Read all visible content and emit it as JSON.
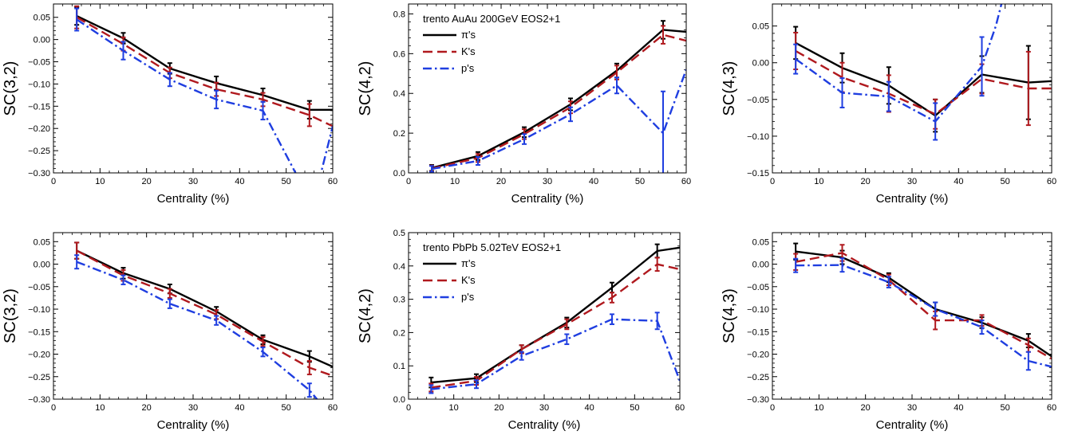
{
  "chart_data": [
    {
      "type": "line",
      "ylabel": "SC(3,2)",
      "xlabel": "Centrality (%)",
      "xlim": [
        0,
        60
      ],
      "ylim": [
        -0.3,
        0.08
      ],
      "xticks": [
        0,
        10,
        20,
        30,
        40,
        50,
        60
      ],
      "yticks": [
        -0.3,
        -0.25,
        -0.2,
        -0.15,
        -0.1,
        -0.05,
        0.0,
        0.05
      ],
      "legend_title": "",
      "legend": false,
      "series": [
        {
          "name": "π's",
          "color": "#000000",
          "dash": "solid",
          "x": [
            5,
            15,
            25,
            35,
            45,
            55,
            60
          ],
          "y": [
            0.053,
            0.003,
            -0.065,
            -0.098,
            -0.125,
            -0.158,
            -0.158
          ],
          "err": [
            0.02,
            0.012,
            0.012,
            0.015,
            0.015,
            0.02,
            0
          ]
        },
        {
          "name": "K's",
          "color": "#b0191e",
          "dash": "dashed",
          "x": [
            5,
            15,
            25,
            35,
            45,
            55,
            60
          ],
          "y": [
            0.05,
            -0.01,
            -0.075,
            -0.112,
            -0.135,
            -0.17,
            -0.195
          ],
          "err": [
            0.025,
            0.015,
            0.012,
            0.015,
            0.015,
            0.025,
            0
          ]
        },
        {
          "name": "p's",
          "color": "#1f3ee0",
          "dash": "dashdot",
          "x": [
            5,
            15,
            25,
            35,
            45,
            50,
            53,
            57,
            60
          ],
          "y": [
            0.045,
            -0.025,
            -0.09,
            -0.135,
            -0.16,
            -0.26,
            -0.32,
            -0.32,
            -0.195
          ],
          "err": [
            0.025,
            0.02,
            0.015,
            0.02,
            0.02,
            0,
            0,
            0,
            0
          ]
        }
      ]
    },
    {
      "type": "line",
      "ylabel": "SC(4,2)",
      "xlabel": "Centrality (%)",
      "xlim": [
        0,
        60
      ],
      "ylim": [
        0,
        0.85
      ],
      "xticks": [
        0,
        10,
        20,
        30,
        40,
        50,
        60
      ],
      "yticks": [
        0.0,
        0.2,
        0.4,
        0.6,
        0.8
      ],
      "legend_title": "trento AuAu 200GeV EOS2+1",
      "legend": true,
      "series": [
        {
          "name": "π's",
          "color": "#000000",
          "dash": "solid",
          "x": [
            5,
            15,
            25,
            35,
            45,
            55,
            60
          ],
          "y": [
            0.025,
            0.085,
            0.205,
            0.345,
            0.515,
            0.72,
            0.71
          ],
          "err": [
            0.015,
            0.02,
            0.025,
            0.03,
            0.035,
            0.045,
            0
          ]
        },
        {
          "name": "K's",
          "color": "#b0191e",
          "dash": "dashed",
          "x": [
            5,
            15,
            25,
            35,
            45,
            55,
            60
          ],
          "y": [
            0.022,
            0.075,
            0.195,
            0.33,
            0.505,
            0.695,
            0.665
          ],
          "err": [
            0.015,
            0.02,
            0.025,
            0.03,
            0.035,
            0.045,
            0
          ]
        },
        {
          "name": "p's",
          "color": "#1f3ee0",
          "dash": "dashdot",
          "x": [
            5,
            15,
            25,
            35,
            45,
            55,
            60
          ],
          "y": [
            0.02,
            0.06,
            0.17,
            0.295,
            0.44,
            0.2,
            0.52
          ],
          "err": [
            0.015,
            0.02,
            0.025,
            0.035,
            0.04,
            0.21,
            0
          ]
        }
      ]
    },
    {
      "type": "line",
      "ylabel": "SC(4,3)",
      "xlabel": "Centrality (%)",
      "xlim": [
        0,
        60
      ],
      "ylim": [
        -0.15,
        0.08
      ],
      "xticks": [
        0,
        10,
        20,
        30,
        40,
        50,
        60
      ],
      "yticks": [
        -0.15,
        -0.1,
        -0.05,
        0.0,
        0.05
      ],
      "legend_title": "",
      "legend": false,
      "series": [
        {
          "name": "π's",
          "color": "#000000",
          "dash": "solid",
          "x": [
            5,
            15,
            25,
            35,
            45,
            55,
            60
          ],
          "y": [
            0.027,
            -0.007,
            -0.031,
            -0.072,
            -0.016,
            -0.027,
            -0.025
          ],
          "err": [
            0.022,
            0.02,
            0.025,
            0.022,
            0.025,
            0.05,
            0
          ]
        },
        {
          "name": "K's",
          "color": "#b0191e",
          "dash": "dashed",
          "x": [
            5,
            15,
            25,
            35,
            45,
            55,
            60
          ],
          "y": [
            0.016,
            -0.02,
            -0.042,
            -0.07,
            -0.022,
            -0.035,
            -0.035
          ],
          "err": [
            0.025,
            0.02,
            0.025,
            0.02,
            0.02,
            0.05,
            0
          ]
        },
        {
          "name": "p's",
          "color": "#1f3ee0",
          "dash": "dashdot",
          "x": [
            5,
            15,
            25,
            35,
            45,
            48,
            50
          ],
          "y": [
            0.005,
            -0.041,
            -0.046,
            -0.08,
            -0.005,
            0.05,
            0.1
          ],
          "err": [
            0.02,
            0.02,
            0.02,
            0.025,
            0.04,
            0,
            0
          ]
        }
      ]
    },
    {
      "type": "line",
      "ylabel": "SC(3,2)",
      "xlabel": "Centrality (%)",
      "xlim": [
        0,
        60
      ],
      "ylim": [
        -0.3,
        0.07
      ],
      "xticks": [
        0,
        10,
        20,
        30,
        40,
        50,
        60
      ],
      "yticks": [
        -0.3,
        -0.25,
        -0.2,
        -0.15,
        -0.1,
        -0.05,
        0.0,
        0.05
      ],
      "legend_title": "",
      "legend": false,
      "series": [
        {
          "name": "π's",
          "color": "#000000",
          "dash": "solid",
          "x": [
            5,
            15,
            25,
            35,
            45,
            55,
            60
          ],
          "y": [
            0.03,
            -0.02,
            -0.055,
            -0.105,
            -0.168,
            -0.205,
            -0.228
          ],
          "err": [
            0.018,
            0.012,
            0.01,
            0.01,
            0.01,
            0.012,
            0
          ]
        },
        {
          "name": "K's",
          "color": "#b0191e",
          "dash": "dashed",
          "x": [
            5,
            15,
            25,
            35,
            45,
            55,
            60
          ],
          "y": [
            0.03,
            -0.025,
            -0.065,
            -0.112,
            -0.172,
            -0.23,
            -0.248
          ],
          "err": [
            0.018,
            0.012,
            0.01,
            0.01,
            0.01,
            0.015,
            0
          ]
        },
        {
          "name": "p's",
          "color": "#1f3ee0",
          "dash": "dashdot",
          "x": [
            5,
            15,
            25,
            35,
            45,
            55,
            57
          ],
          "y": [
            0.005,
            -0.035,
            -0.088,
            -0.125,
            -0.195,
            -0.28,
            -0.305
          ],
          "err": [
            0.015,
            0.01,
            0.01,
            0.01,
            0.01,
            0.015,
            0
          ]
        }
      ]
    },
    {
      "type": "line",
      "ylabel": "SC(4,2)",
      "xlabel": "Centrality (%)",
      "xlim": [
        0,
        60
      ],
      "ylim": [
        0,
        0.5
      ],
      "xticks": [
        0,
        10,
        20,
        30,
        40,
        50,
        60
      ],
      "yticks": [
        0.0,
        0.1,
        0.2,
        0.3,
        0.4,
        0.5
      ],
      "legend_title": "trento PbPb 5.02TeV EOS2+1",
      "legend": true,
      "series": [
        {
          "name": "π's",
          "color": "#000000",
          "dash": "solid",
          "x": [
            5,
            15,
            25,
            35,
            45,
            55,
            60
          ],
          "y": [
            0.05,
            0.063,
            0.15,
            0.23,
            0.335,
            0.445,
            0.455
          ],
          "err": [
            0.015,
            0.012,
            0.012,
            0.015,
            0.015,
            0.02,
            0
          ]
        },
        {
          "name": "K's",
          "color": "#b0191e",
          "dash": "dashed",
          "x": [
            5,
            15,
            25,
            35,
            45,
            55,
            60
          ],
          "y": [
            0.035,
            0.055,
            0.15,
            0.225,
            0.305,
            0.405,
            0.39
          ],
          "err": [
            0.012,
            0.012,
            0.012,
            0.015,
            0.015,
            0.02,
            0
          ]
        },
        {
          "name": "p's",
          "color": "#1f3ee0",
          "dash": "dashdot",
          "x": [
            5,
            15,
            25,
            35,
            45,
            55,
            60
          ],
          "y": [
            0.03,
            0.045,
            0.13,
            0.18,
            0.24,
            0.235,
            0.055
          ],
          "err": [
            0.012,
            0.012,
            0.012,
            0.015,
            0.015,
            0.025,
            0
          ]
        }
      ]
    },
    {
      "type": "line",
      "ylabel": "SC(4,3)",
      "xlabel": "Centrality (%)",
      "xlim": [
        0,
        60
      ],
      "ylim": [
        -0.3,
        0.07
      ],
      "xticks": [
        0,
        10,
        20,
        30,
        40,
        50,
        60
      ],
      "yticks": [
        -0.3,
        -0.25,
        -0.2,
        -0.15,
        -0.1,
        -0.05,
        0.0,
        0.05
      ],
      "legend_title": "",
      "legend": false,
      "series": [
        {
          "name": "π's",
          "color": "#000000",
          "dash": "solid",
          "x": [
            5,
            15,
            25,
            35,
            45,
            55,
            60
          ],
          "y": [
            0.028,
            0.015,
            -0.03,
            -0.1,
            -0.13,
            -0.17,
            -0.205
          ],
          "err": [
            0.018,
            0.015,
            0.01,
            0.015,
            0.012,
            0.015,
            0
          ]
        },
        {
          "name": "K's",
          "color": "#b0191e",
          "dash": "dashed",
          "x": [
            5,
            15,
            25,
            35,
            45,
            55,
            60
          ],
          "y": [
            0.005,
            0.025,
            -0.035,
            -0.125,
            -0.125,
            -0.18,
            -0.21
          ],
          "err": [
            0.018,
            0.018,
            0.012,
            0.02,
            0.012,
            0.015,
            0
          ]
        },
        {
          "name": "p's",
          "color": "#1f3ee0",
          "dash": "dashdot",
          "x": [
            5,
            15,
            25,
            35,
            45,
            55,
            60
          ],
          "y": [
            -0.003,
            -0.002,
            -0.04,
            -0.1,
            -0.14,
            -0.215,
            -0.228
          ],
          "err": [
            0.015,
            0.015,
            0.012,
            0.015,
            0.015,
            0.02,
            0
          ]
        }
      ]
    }
  ]
}
